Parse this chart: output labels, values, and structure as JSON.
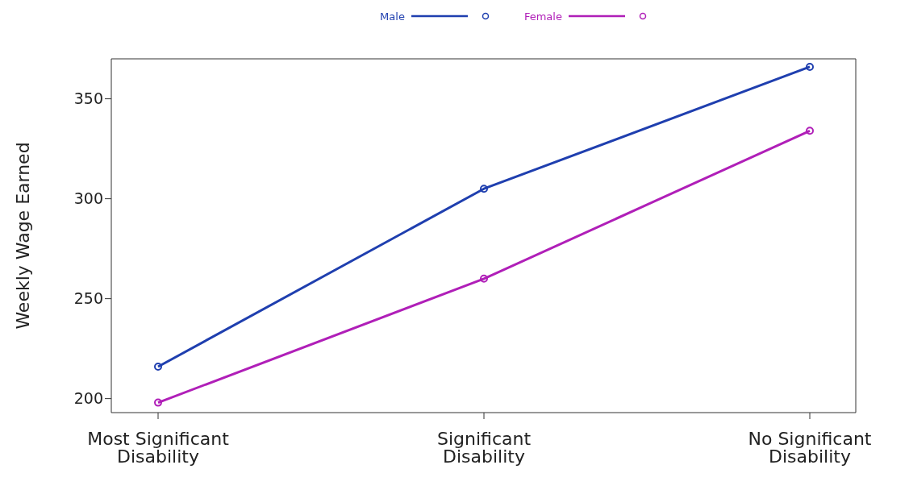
{
  "chart_data": {
    "type": "line",
    "ylabel": "Weekly Wage Earned",
    "categories": [
      "Most Significant Disability",
      "Significant Disability",
      "No Significant Disability"
    ],
    "series": [
      {
        "name": "Male",
        "color": "#1f3faf",
        "values": [
          216,
          305,
          366
        ]
      },
      {
        "name": "Female",
        "color": "#b01fb8",
        "values": [
          198,
          260,
          334
        ]
      }
    ],
    "ylim": [
      193,
      370
    ],
    "yticks": [
      200,
      250,
      300,
      350
    ],
    "grid": false,
    "legend": "top",
    "marker": "circle",
    "line_style": "solid"
  }
}
